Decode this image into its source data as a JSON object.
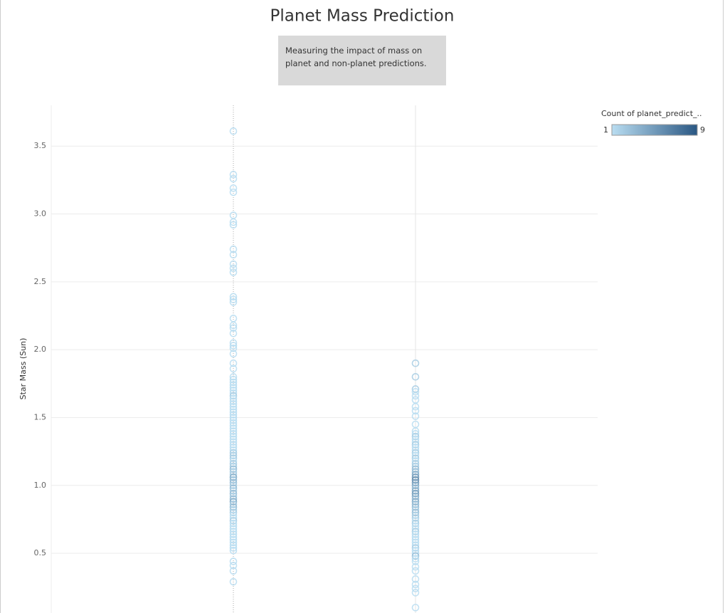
{
  "chart_data": {
    "type": "strip",
    "title": "Planet Mass Prediction",
    "subtitle": "Measuring the impact of mass on planet and non-planet predictions.",
    "y_label": "Star Mass (Sun)",
    "ylim": [
      0.06,
      3.8
    ],
    "yticks": [
      {
        "value": 0.5,
        "label": "0.5"
      },
      {
        "value": 1,
        "label": "1.0"
      },
      {
        "value": 1.5,
        "label": "1.5"
      },
      {
        "value": 2,
        "label": "2.0"
      },
      {
        "value": 2.5,
        "label": "2.5"
      },
      {
        "value": 3,
        "label": "3.0"
      },
      {
        "value": 3.5,
        "label": "3.5"
      }
    ],
    "grid": true,
    "color_legend": {
      "title": "Count of planet_predict_..",
      "min": 1,
      "max": 9,
      "colors": [
        "#b9ddf1",
        "#2a5783"
      ]
    },
    "columns": [
      {
        "values": [
          3.61,
          3.29,
          3.26,
          3.19,
          3.16,
          2.99,
          2.94,
          2.92,
          2.74,
          2.7,
          2.63,
          2.6,
          2.57,
          2.39,
          2.37,
          2.35,
          2.23,
          2.18,
          2.16,
          2.12,
          2.05,
          2.03,
          2.01,
          1.97,
          1.9,
          1.86,
          1.8,
          1.78,
          1.76,
          1.74,
          1.72,
          1.7,
          1.68,
          1.66,
          1.64,
          1.62,
          1.6,
          1.58,
          1.56,
          1.54,
          1.52,
          1.5,
          1.48,
          1.46,
          1.44,
          1.42,
          1.4,
          1.38,
          1.36,
          1.34,
          1.32,
          1.3,
          1.28,
          1.26,
          1.24,
          1.22,
          1.2,
          1.18,
          1.16,
          1.14,
          1.12,
          1.1,
          1.08,
          1.06,
          1.04,
          1.02,
          1.0,
          0.98,
          0.96,
          0.94,
          0.92,
          0.9,
          0.88,
          0.86,
          0.84,
          0.82,
          0.8,
          0.78,
          0.76,
          0.74,
          0.72,
          0.7,
          0.68,
          0.66,
          0.64,
          0.62,
          0.6,
          0.58,
          0.56,
          0.54,
          0.52,
          0.44,
          0.41,
          0.37,
          0.29
        ],
        "counts": [
          1,
          1,
          1,
          1,
          1,
          1,
          1,
          1,
          1,
          1,
          1,
          1,
          1,
          1,
          1,
          1,
          1,
          1,
          1,
          1,
          1,
          1,
          1,
          1,
          1,
          1,
          1,
          1,
          1,
          1,
          1,
          1,
          1,
          2,
          1,
          1,
          1,
          1,
          1,
          1,
          1,
          1,
          1,
          1,
          1,
          1,
          1,
          1,
          1,
          1,
          1,
          1,
          1,
          1,
          2,
          2,
          2,
          1,
          2,
          2,
          3,
          2,
          2,
          4,
          3,
          3,
          2,
          3,
          2,
          3,
          2,
          3,
          4,
          2,
          3,
          2,
          2,
          1,
          1,
          2,
          1,
          1,
          1,
          1,
          1,
          1,
          1,
          1,
          1,
          1,
          1,
          1,
          1,
          1,
          1
        ]
      },
      {
        "values": [
          1.9,
          1.8,
          1.71,
          1.69,
          1.66,
          1.63,
          1.58,
          1.55,
          1.51,
          1.45,
          1.4,
          1.38,
          1.36,
          1.34,
          1.32,
          1.3,
          1.28,
          1.26,
          1.24,
          1.22,
          1.2,
          1.18,
          1.16,
          1.14,
          1.12,
          1.1,
          1.08,
          1.06,
          1.04,
          1.02,
          1.0,
          0.98,
          0.96,
          0.94,
          0.92,
          0.9,
          0.88,
          0.86,
          0.84,
          0.82,
          0.8,
          0.78,
          0.76,
          0.74,
          0.72,
          0.7,
          0.68,
          0.66,
          0.64,
          0.62,
          0.6,
          0.58,
          0.56,
          0.54,
          0.52,
          0.5,
          0.48,
          0.46,
          0.44,
          0.4,
          0.37,
          0.31,
          0.27,
          0.24,
          0.21,
          0.1
        ],
        "counts": [
          2,
          2,
          2,
          1,
          1,
          1,
          1,
          1,
          1,
          1,
          1,
          1,
          2,
          1,
          1,
          2,
          1,
          1,
          2,
          1,
          2,
          1,
          2,
          2,
          3,
          3,
          4,
          5,
          6,
          5,
          4,
          3,
          4,
          5,
          4,
          3,
          4,
          3,
          3,
          2,
          3,
          2,
          2,
          1,
          2,
          1,
          1,
          2,
          1,
          1,
          1,
          1,
          1,
          2,
          1,
          1,
          3,
          1,
          1,
          1,
          1,
          1,
          1,
          1,
          1,
          1
        ]
      }
    ]
  }
}
